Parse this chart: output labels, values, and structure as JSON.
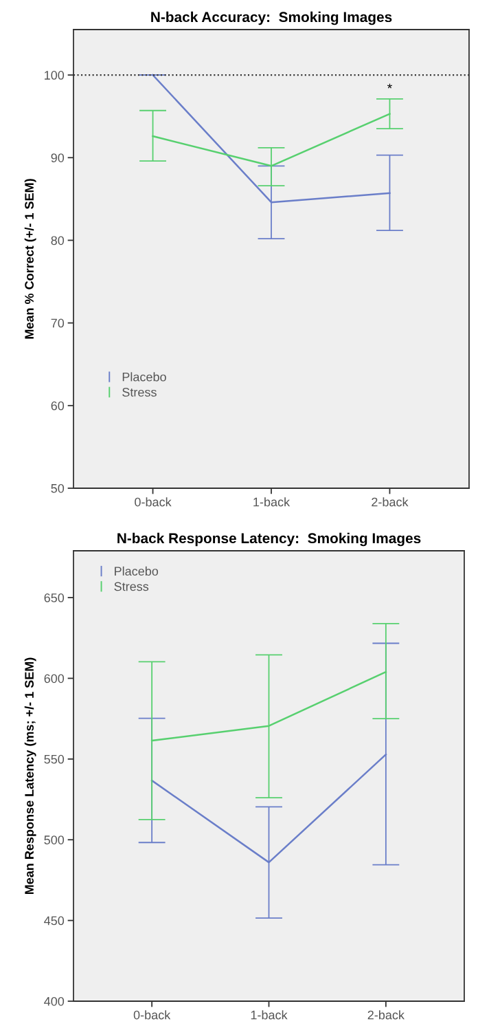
{
  "chart_data": [
    {
      "type": "line",
      "title": "N-back Accuracy:  Smoking Images",
      "ylabel": "Mean % Correct (+/- 1 SEM)",
      "categories": [
        "0-back",
        "1-back",
        "2-back"
      ],
      "ylim": [
        50,
        105.5
      ],
      "yticks": [
        50,
        60,
        70,
        80,
        90,
        100
      ],
      "grid": false,
      "legend": "bottom left",
      "marker": "none",
      "line_style": "solid",
      "series": [
        {
          "name": "Placebo",
          "color": "#6a7ec9",
          "values": [
            100,
            84.6,
            85.7
          ],
          "errors": [
            [
              100,
              100
            ],
            [
              80.2,
              89.0
            ],
            [
              81.2,
              90.3
            ]
          ]
        },
        {
          "name": "Stress",
          "color": "#57d06f",
          "values": [
            92.6,
            89.0,
            95.3
          ],
          "errors": [
            [
              89.6,
              95.7
            ],
            [
              86.6,
              91.2
            ],
            [
              93.5,
              97.1
            ]
          ]
        }
      ],
      "ref_lines": [
        {
          "axis": "y",
          "value": 100,
          "color": "#333333",
          "line_style": "dotted"
        }
      ],
      "annotations": [
        "*"
      ]
    },
    {
      "type": "line",
      "title": "N-back Response Latency:  Smoking Images",
      "ylabel": "Mean Response Latency (ms; +/- 1 SEM)",
      "categories": [
        "0-back",
        "1-back",
        "2-back"
      ],
      "ylim": [
        400,
        679
      ],
      "yticks": [
        400,
        450,
        500,
        550,
        600,
        650
      ],
      "grid": false,
      "legend": "top left",
      "marker": "none",
      "line_style": "solid",
      "series": [
        {
          "name": "Placebo",
          "color": "#6a7ec9",
          "values": [
            536.7,
            486,
            552.8
          ],
          "errors": [
            [
              498.3,
              575.2
            ],
            [
              451.5,
              520.4
            ],
            [
              484.5,
              621.7
            ]
          ]
        },
        {
          "name": "Stress",
          "color": "#57d06f",
          "values": [
            561.4,
            570.5,
            604
          ],
          "errors": [
            [
              512.5,
              610.3
            ],
            [
              526,
              614.5
            ],
            [
              575,
              633.9
            ]
          ]
        }
      ]
    }
  ]
}
